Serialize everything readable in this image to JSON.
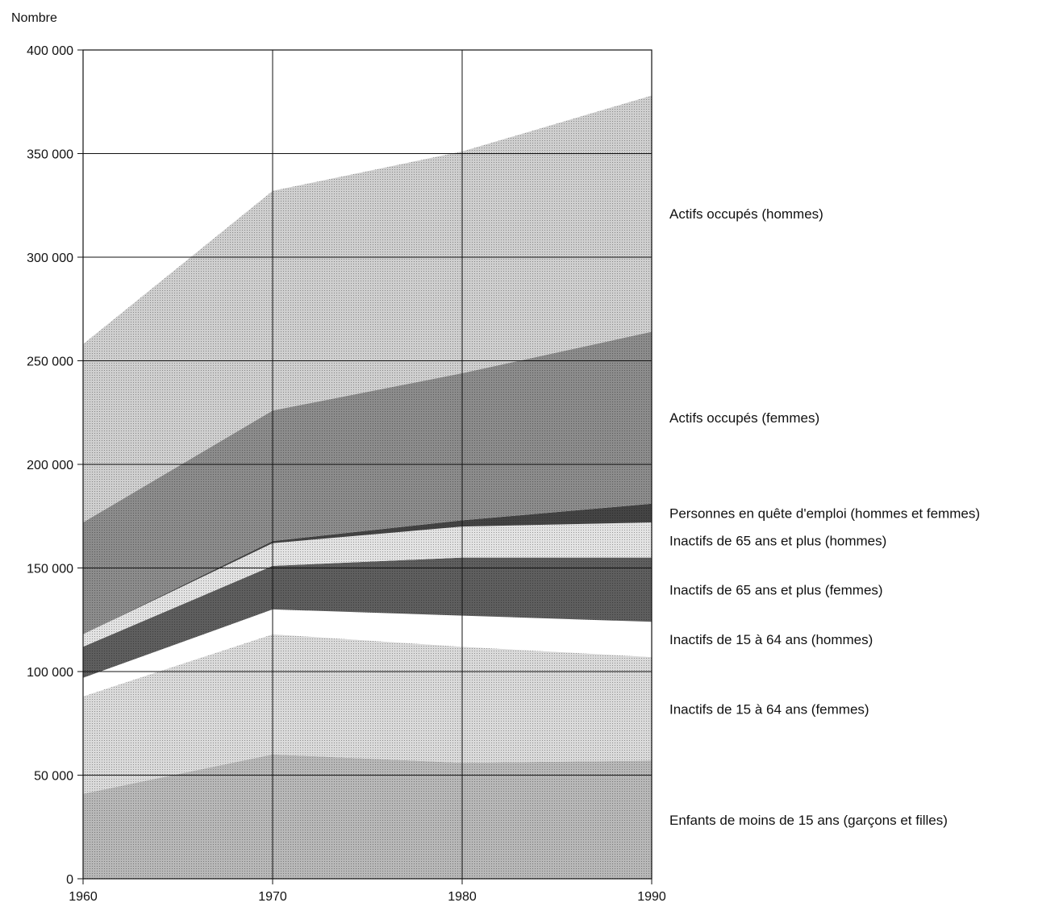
{
  "chart_data": {
    "type": "area",
    "stacked": true,
    "title": "",
    "ylabel": "Nombre",
    "xlabel": "",
    "x": [
      1960,
      1970,
      1980,
      1990
    ],
    "xlim": [
      1960,
      1990
    ],
    "ylim": [
      0,
      400000
    ],
    "yticks": [
      0,
      50000,
      100000,
      150000,
      200000,
      250000,
      300000,
      350000,
      400000
    ],
    "ytick_labels": [
      "0",
      "50 000",
      "100 000",
      "150 000",
      "200 000",
      "250 000",
      "300 000",
      "350 000",
      "400 000"
    ],
    "xtick_labels": [
      "1960",
      "1970",
      "1980",
      "1990"
    ],
    "grid": true,
    "legend": "direct-labels-right",
    "series": [
      {
        "name": "Enfants de moins de 15 ans (garçons et filles)",
        "values": [
          41000,
          60000,
          56000,
          57000
        ],
        "color": "#b8b8b8"
      },
      {
        "name": "Inactifs de 15 à 64 ans (femmes)",
        "values": [
          47000,
          58000,
          56000,
          50000
        ],
        "color": "#dadada"
      },
      {
        "name": "Inactifs de 15 à 64 ans (hommes)",
        "values": [
          9000,
          12000,
          15000,
          17000
        ],
        "color": "#ffffff"
      },
      {
        "name": "Inactifs de 65 ans et plus (femmes)",
        "values": [
          15000,
          21000,
          28000,
          31000
        ],
        "color": "#5e5e5e"
      },
      {
        "name": "Inactifs de 65 ans et plus (hommes)",
        "values": [
          6000,
          11000,
          15000,
          17000
        ],
        "color": "#e3e3e3"
      },
      {
        "name": "Personnes en quête d'emploi  (hommes et femmes)",
        "values": [
          0,
          1000,
          3000,
          9000
        ],
        "color": "#444444"
      },
      {
        "name": "Actifs occupés (femmes)",
        "values": [
          54000,
          63000,
          71000,
          83000
        ],
        "color": "#8c8c8c"
      },
      {
        "name": "Actifs occupés (hommes)",
        "values": [
          86000,
          106000,
          107000,
          114000
        ],
        "color": "#cfcfcf"
      }
    ]
  }
}
